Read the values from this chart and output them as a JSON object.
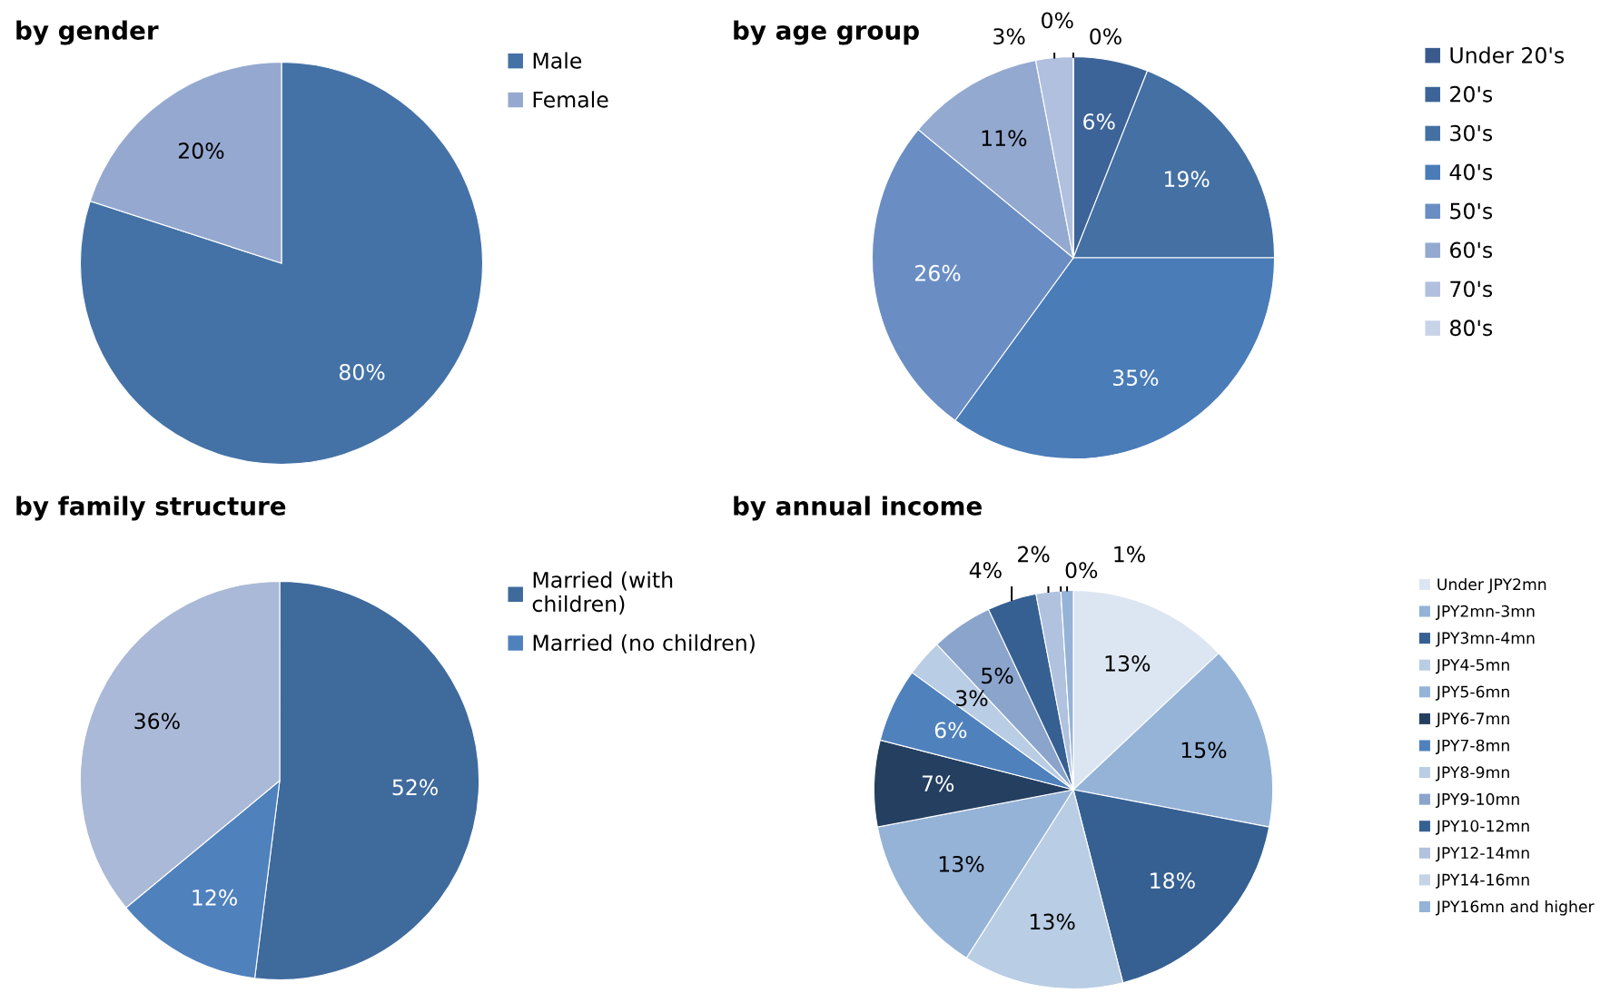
{
  "chart_data": [
    {
      "type": "pie",
      "title": "by gender",
      "categories": [
        "Male",
        "Female"
      ],
      "values": [
        80,
        20
      ],
      "colors": [
        "#4472a6",
        "#95a9d0"
      ],
      "value_labels": [
        "80%",
        "20%"
      ],
      "legend": "right"
    },
    {
      "type": "pie",
      "title": "by age group",
      "categories": [
        "Under 20's",
        "20's",
        "30's",
        "40's",
        "50's",
        "60's",
        "70's",
        "80's"
      ],
      "values": [
        0,
        6,
        19,
        35,
        26,
        11,
        3,
        0
      ],
      "colors": [
        "#3a5a8c",
        "#3d6498",
        "#4470a4",
        "#4a7cb8",
        "#6a8ec4",
        "#93a9d0",
        "#b0c0de",
        "#c8d3e8"
      ],
      "value_labels": [
        "0%",
        "6%",
        "19%",
        "35%",
        "26%",
        "11%",
        "3%",
        "0%"
      ],
      "legend": "right"
    },
    {
      "type": "pie",
      "title": "by family structure",
      "categories": [
        "Married (with\nchildren)",
        "Married (no children)",
        null
      ],
      "values": [
        52,
        12,
        36
      ],
      "colors": [
        "#3f6a9c",
        "#4f81bd",
        "#aab9d7"
      ],
      "value_labels": [
        "52%",
        "12%",
        "36%"
      ],
      "legend": "right"
    },
    {
      "type": "pie",
      "title": "by annual income",
      "categories": [
        "Under JPY2mn",
        "JPY2mn-3mn",
        "JPY3mn-4mn",
        "JPY4-5mn",
        "JPY5-6mn",
        "JPY6-7mn",
        "JPY7-8mn",
        "JPY8-9mn",
        "JPY9-10mn",
        "JPY10-12mn",
        "JPY12-14mn",
        "JPY14-16mn",
        "JPY16mn and higher"
      ],
      "values": [
        13,
        15,
        18,
        13,
        13,
        7,
        6,
        3,
        5,
        4,
        2,
        0,
        1
      ],
      "colors": [
        "#dce6f2",
        "#95b3d7",
        "#366092",
        "#b9cde5",
        "#95b3d7",
        "#243f60",
        "#4f81bd",
        "#b9cde5",
        "#8aa4cc",
        "#376092",
        "#b0c2de",
        "#c5d2e8",
        "#95b3d7"
      ],
      "value_labels": [
        "13%",
        "15%",
        "18%",
        "13%",
        "13%",
        "7%",
        "6%",
        "3%",
        "5%",
        "4%",
        "2%",
        "0%",
        "1%"
      ],
      "legend": "right"
    }
  ]
}
